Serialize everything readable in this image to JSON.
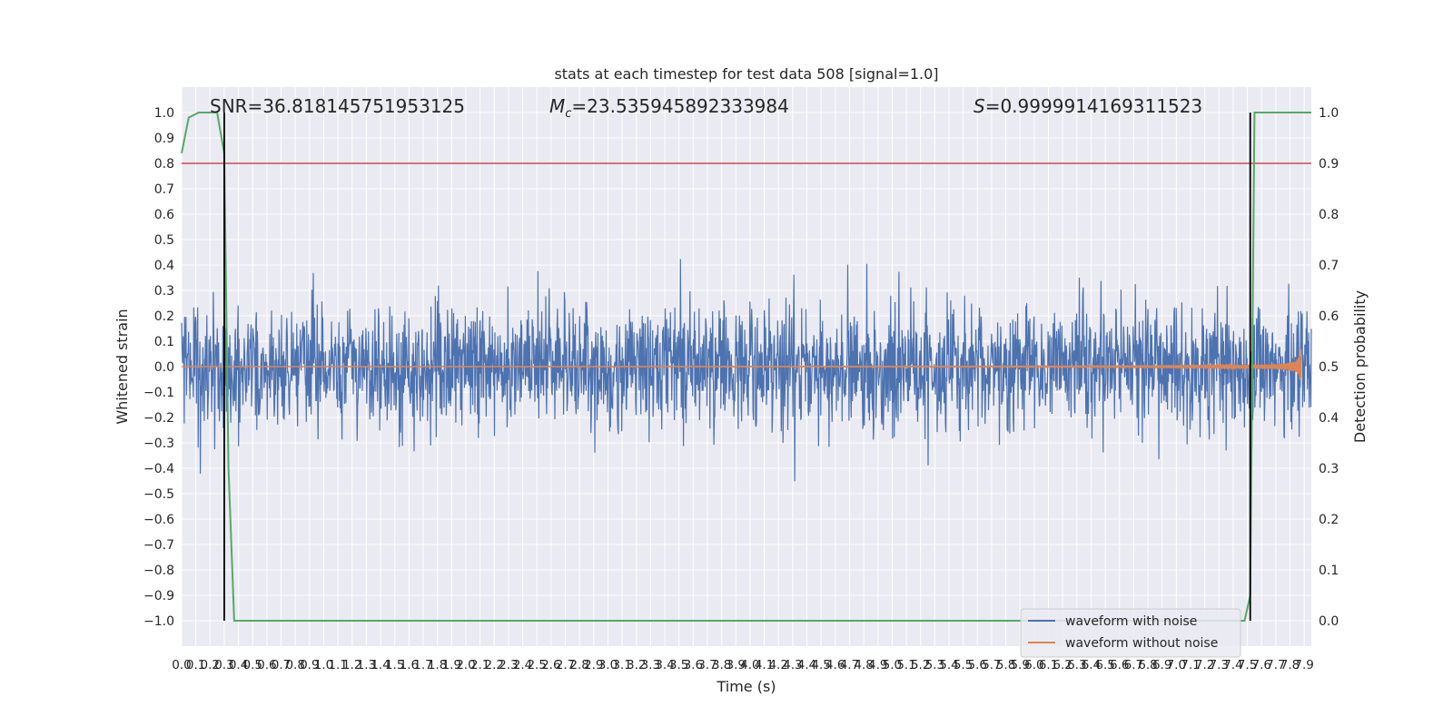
{
  "chart_data": {
    "type": "line",
    "title": "stats at each timestep for test data 508 [signal=1.0]",
    "xlabel": "Time (s)",
    "ylabel": "Whitened strain",
    "ylabel_right": "Detection probability",
    "xlim": [
      0.0,
      7.95
    ],
    "ylim": [
      -1.1,
      1.1
    ],
    "ylim_right": [
      -0.05,
      1.05
    ],
    "x_ticks": [
      "0.0",
      "0.1",
      "0.2",
      "0.3",
      "0.4",
      "0.5",
      "0.6",
      "0.7",
      "0.8",
      "0.9",
      "1.0",
      "1.1",
      "1.2",
      "1.3",
      "1.4",
      "1.5",
      "1.6",
      "1.7",
      "1.8",
      "1.9",
      "2.0",
      "2.1",
      "2.2",
      "2.3",
      "2.4",
      "2.5",
      "2.6",
      "2.7",
      "2.8",
      "2.9",
      "3.0",
      "3.1",
      "3.2",
      "3.3",
      "3.4",
      "3.5",
      "3.6",
      "3.7",
      "3.8",
      "3.9",
      "4.0",
      "4.1",
      "4.2",
      "4.3",
      "4.4",
      "4.5",
      "4.6",
      "4.7",
      "4.8",
      "4.9",
      "5.0",
      "5.1",
      "5.2",
      "5.3",
      "5.4",
      "5.5",
      "5.6",
      "5.7",
      "5.8",
      "5.9",
      "6.0",
      "6.1",
      "6.2",
      "6.3",
      "6.4",
      "6.5",
      "6.6",
      "6.7",
      "6.8",
      "6.9",
      "7.0",
      "7.1",
      "7.2",
      "7.3",
      "7.4",
      "7.5",
      "7.6",
      "7.7",
      "7.8",
      "7.9"
    ],
    "y_ticks": [
      "1.0",
      "0.9",
      "0.8",
      "0.7",
      "0.6",
      "0.5",
      "0.4",
      "0.3",
      "0.2",
      "0.1",
      "0.0",
      "−0.1",
      "−0.2",
      "−0.3",
      "−0.4",
      "−0.5",
      "−0.6",
      "−0.7",
      "−0.8",
      "−0.9",
      "−1.0"
    ],
    "y_ticks_right": [
      "1.0",
      "0.9",
      "0.8",
      "0.7",
      "0.6",
      "0.5",
      "0.4",
      "0.3",
      "0.2",
      "0.1",
      "0.0"
    ],
    "annotations": {
      "snr_text": "SNR=36.818145751953125",
      "mc_prefix": "M",
      "mc_sub": "c",
      "mc_value": "=23.535945892333984",
      "s_prefix": "S",
      "s_value": "=0.9999914169311523"
    },
    "threshold": 0.9,
    "vlines": [
      0.3,
      7.52
    ],
    "series": [
      {
        "name": "waveform with noise",
        "color": "#4c72b0",
        "noise_amplitude": 0.3,
        "t_start": 0.0,
        "t_end": 7.95
      },
      {
        "name": "waveform without noise",
        "color": "#dd8452",
        "chirp_start": 1.0,
        "merger_time": 7.88
      },
      {
        "color": "#55a868",
        "axis": "right",
        "x": [
          0.0,
          0.05,
          0.12,
          0.25,
          0.3,
          0.33,
          0.37,
          7.48,
          7.52,
          7.55,
          7.95
        ],
        "y": [
          0.92,
          0.99,
          1.0,
          1.0,
          0.92,
          0.3,
          0.0,
          0.0,
          0.05,
          1.0,
          1.0
        ]
      }
    ],
    "threshold_color": "#c44e52",
    "legend_position": "lower-right",
    "grid": true
  }
}
